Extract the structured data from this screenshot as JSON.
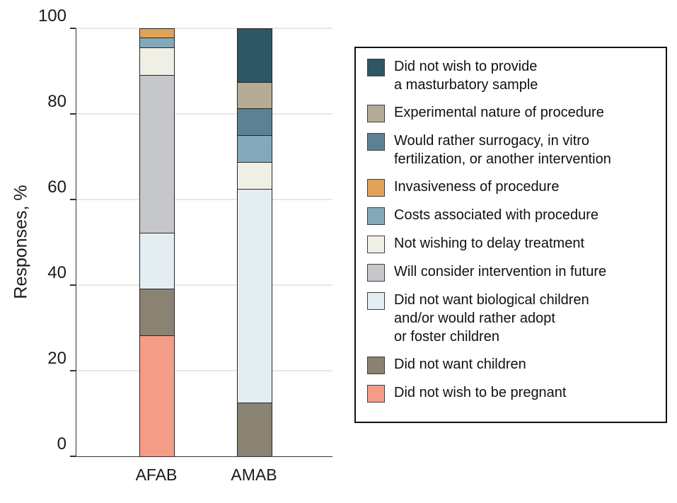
{
  "chart_data": {
    "type": "bar",
    "stacked": true,
    "title": "",
    "categories": [
      "AFAB",
      "AMAB"
    ],
    "ylabel": "Responses, %",
    "xlabel": "",
    "ylim": [
      0,
      100
    ],
    "yticks": [
      0,
      20,
      40,
      60,
      80,
      100
    ],
    "grid": "horizontal",
    "legend_position": "right",
    "axis_color": "#333333",
    "gridline_color": "#e7e7e7",
    "segment_edge_color": "#262626",
    "series": [
      {
        "name": "Did not wish to provide\na masturbatory sample",
        "color": "#2E5665",
        "values": [
          0,
          12.5
        ]
      },
      {
        "name": "Experimental nature of procedure",
        "color": "#B4AC96",
        "values": [
          0,
          6.25
        ]
      },
      {
        "name": "Would rather surrogacy, in vitro\nfertilization, or another intervention",
        "color": "#5C8193",
        "values": [
          0,
          6.25
        ]
      },
      {
        "name": "Invasiveness of procedure",
        "color": "#E2A357",
        "values": [
          2.2,
          0
        ]
      },
      {
        "name": "Costs associated with procedure",
        "color": "#84A8BA",
        "values": [
          2.2,
          6.25
        ]
      },
      {
        "name": "Not wishing to delay treatment",
        "color": "#F0EFE6",
        "values": [
          6.5,
          6.25
        ]
      },
      {
        "name": "Will consider intervention in future",
        "color": "#C5C7CB",
        "values": [
          36.9,
          0
        ]
      },
      {
        "name": "Did not want biological children\nand/or would rather adopt\nor foster children",
        "color": "#E4EDF2",
        "values": [
          13.1,
          50
        ]
      },
      {
        "name": "Did not want children",
        "color": "#8A8272",
        "values": [
          10.8,
          12.5
        ]
      },
      {
        "name": "Did not wish to be pregnant",
        "color": "#F49C86",
        "values": [
          28.3,
          0
        ]
      }
    ]
  }
}
